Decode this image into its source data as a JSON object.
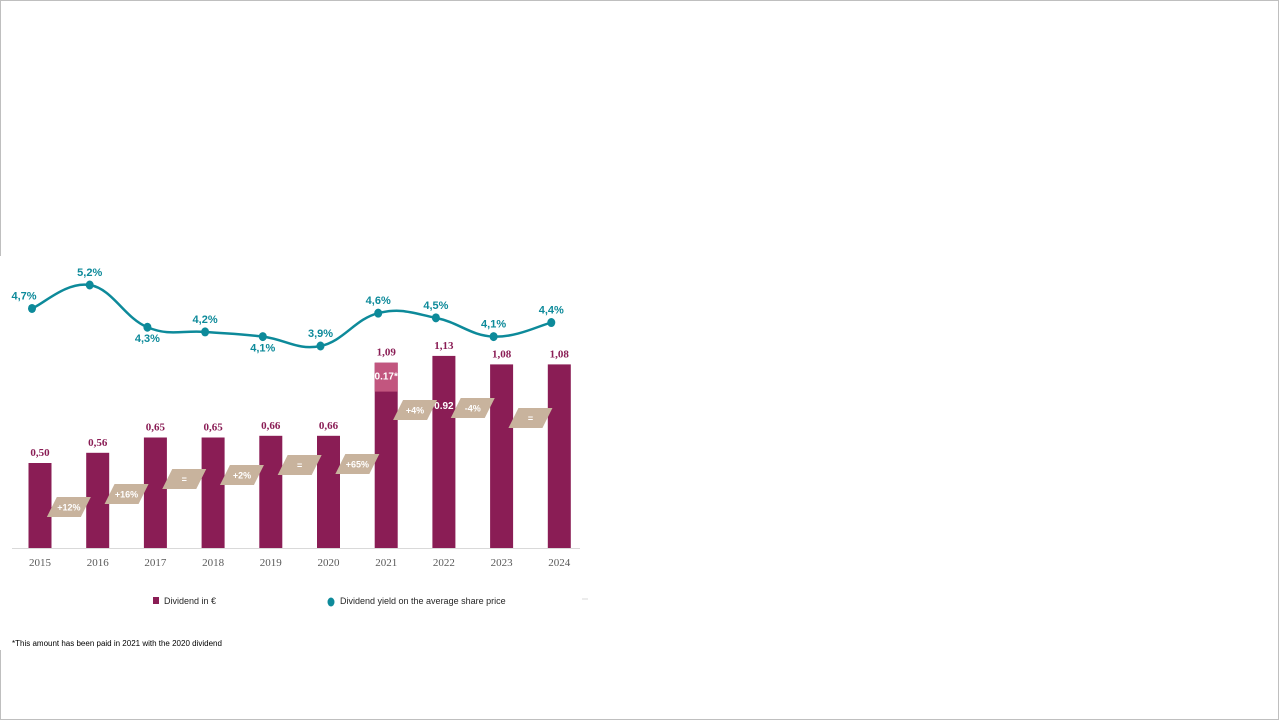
{
  "chart_data": {
    "type": "bar",
    "categories": [
      "2015",
      "2016",
      "2017",
      "2018",
      "2019",
      "2020",
      "2021",
      "2022",
      "2023",
      "2024"
    ],
    "series": [
      {
        "name": "Dividend in €",
        "type": "bar",
        "color": "#8a1d55",
        "values": [
          0.5,
          0.56,
          0.65,
          0.65,
          0.66,
          0.66,
          1.09,
          1.13,
          1.08,
          1.08
        ],
        "labels": [
          "0,50",
          "0,56",
          "0,65",
          "0,65",
          "0,66",
          "0,66",
          "1,09",
          "1,13",
          "1,08",
          "1,08"
        ]
      },
      {
        "name": "Dividend yield on the average share price",
        "type": "line",
        "color": "#0d8a9a",
        "values": [
          4.7,
          5.2,
          4.3,
          4.2,
          4.1,
          3.9,
          4.6,
          4.5,
          4.1,
          4.4
        ],
        "labels": [
          "4,7%",
          "5,2%",
          "4,3%",
          "4,2%",
          "4,1%",
          "3,9%",
          "4,6%",
          "4,5%",
          "4,1%",
          "4,4%"
        ]
      }
    ],
    "stacked_segment": {
      "category": "2021",
      "value": 0.17,
      "label": "0.17*",
      "color": "#c2567f"
    },
    "inbar_label": {
      "category": "2022",
      "value": 0.92,
      "label": "0.92"
    },
    "growth_badges": [
      {
        "between": [
          "2015",
          "2016"
        ],
        "label": "+12%"
      },
      {
        "between": [
          "2016",
          "2017"
        ],
        "label": "+16%"
      },
      {
        "between": [
          "2017",
          "2018"
        ],
        "label": "="
      },
      {
        "between": [
          "2018",
          "2019"
        ],
        "label": "+2%"
      },
      {
        "between": [
          "2019",
          "2020"
        ],
        "label": "="
      },
      {
        "between": [
          "2020",
          "2021"
        ],
        "label": "+65%"
      },
      {
        "between": [
          "2021",
          "2022"
        ],
        "label": "+4%"
      },
      {
        "between": [
          "2022",
          "2023"
        ],
        "label": "-4%"
      },
      {
        "between": [
          "2023",
          "2024"
        ],
        "label": "="
      }
    ],
    "badge_color": "#c8b39d",
    "ylim_bar": [
      0,
      1.3
    ],
    "ylim_yield": [
      3.9,
      5.2
    ],
    "legend": {
      "position": "bottom"
    }
  },
  "footnote": "*This amount has been paid in 2021 with the 2020 dividend"
}
